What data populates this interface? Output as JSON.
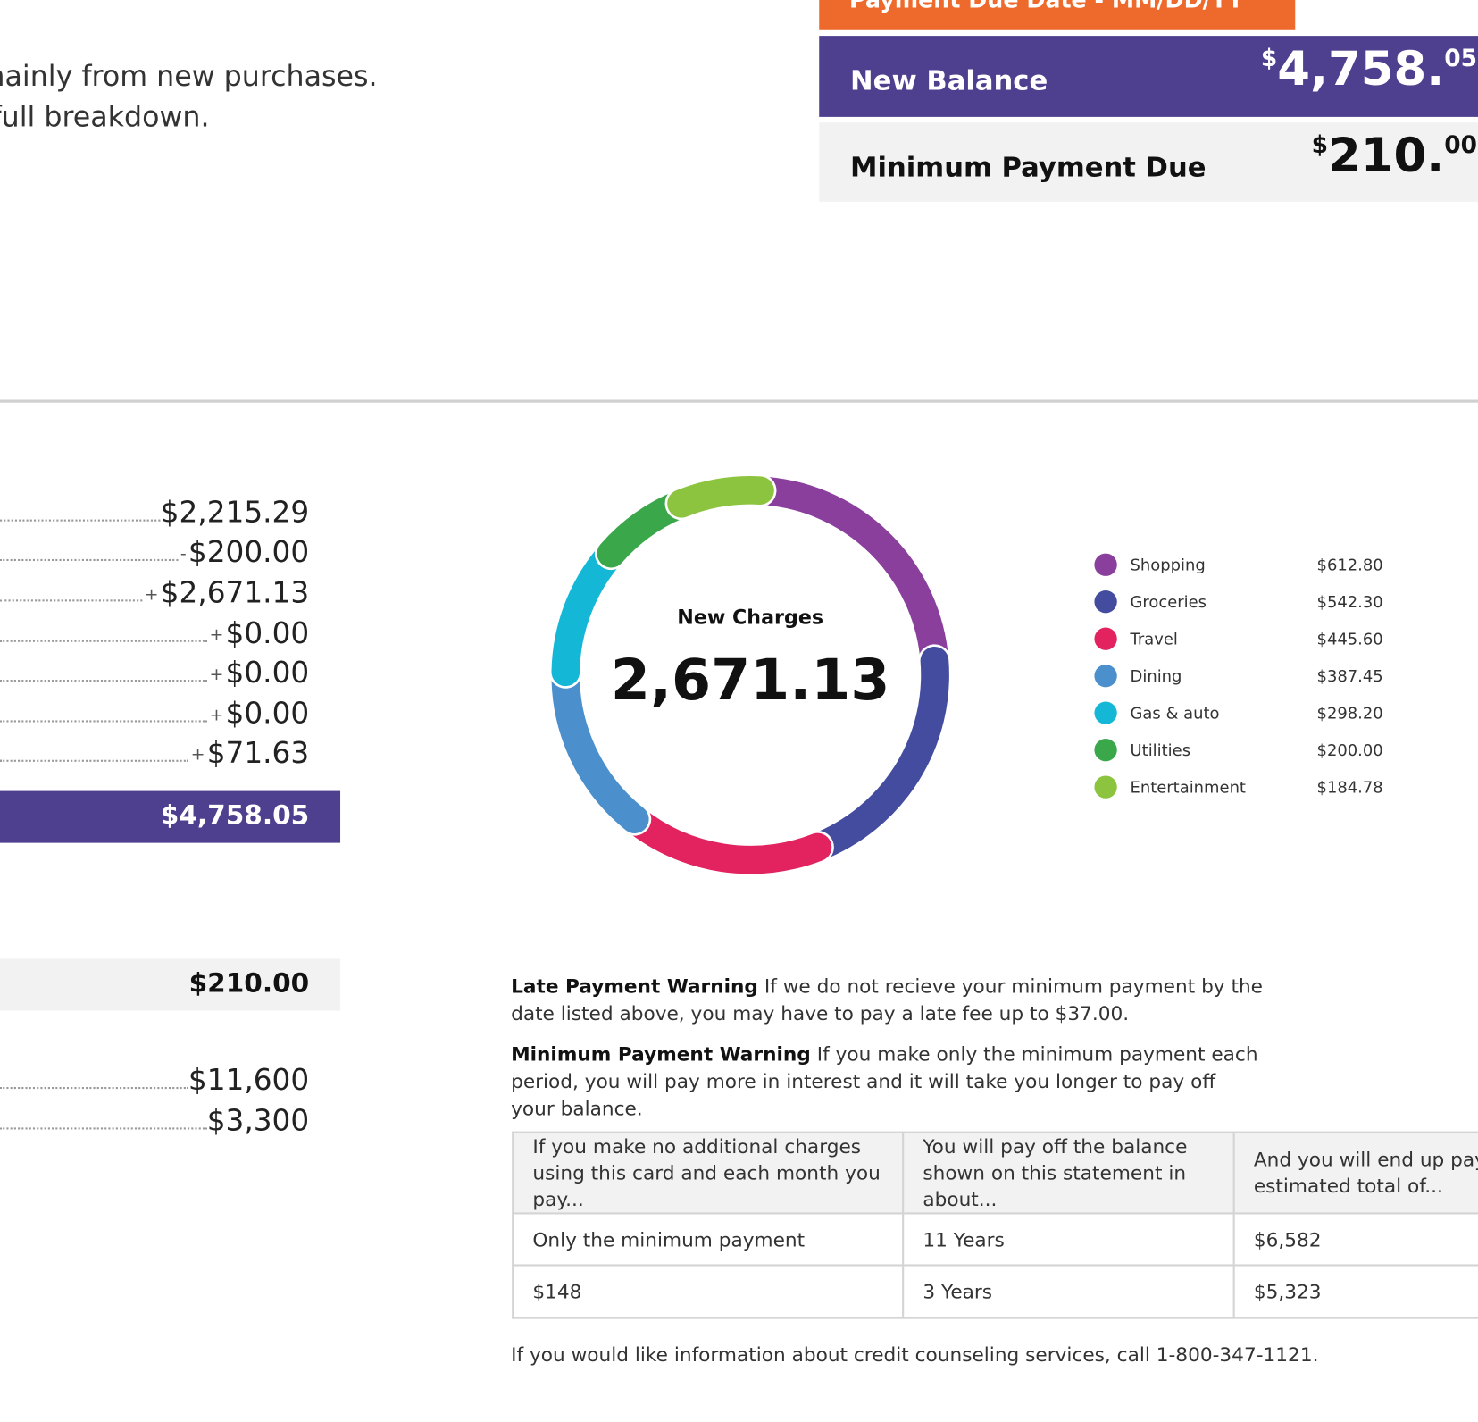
{
  "header": {
    "due_date": "Payment Due Date - MM/DD/YY",
    "new_balance_label": "New Balance",
    "new_balance": "$4,758.05",
    "min_payment_label": "Minimum Payment Due",
    "min_payment": "$210.00"
  },
  "intro": [
    "mainly from new purchases.",
    "full breakdown."
  ],
  "summary": {
    "rows": [
      {
        "amount": "$2,215.29"
      },
      {
        "sign": "-",
        "amount": "$200.00"
      },
      {
        "sign": "+",
        "amount": "$2,671.13"
      },
      {
        "sign": "+",
        "amount": "$0.00"
      },
      {
        "sign": "+",
        "amount": "$0.00"
      },
      {
        "sign": "+",
        "amount": "$0.00"
      },
      {
        "sign": "+",
        "amount": "$71.63"
      }
    ],
    "new_balance": "$4,758.05",
    "min_payment": "$210.00",
    "credit": [
      "$11,600",
      "$3,300"
    ]
  },
  "chart_data": {
    "type": "donut",
    "title": "New Charges",
    "total": "$2,671.13",
    "categories": [
      "Shopping",
      "Groceries",
      "Travel",
      "Dining",
      "Gas & auto",
      "Utilities",
      "Entertainment"
    ],
    "values": [
      612.8,
      542.3,
      445.6,
      387.45,
      298.2,
      200.0,
      184.78
    ],
    "value_labels": [
      "$612.80",
      "$542.30",
      "$445.60",
      "$387.45",
      "$298.20",
      "$200.00",
      "$184.78"
    ],
    "colors": [
      "#8a3f9c",
      "#444c9f",
      "#e2235f",
      "#4b8fcd",
      "#14b8d6",
      "#3aa84a",
      "#8cc43f"
    ]
  },
  "warnings": [
    {
      "title": "Late Payment Warning",
      "text": "If we do not recieve your minimum payment by the date listed above, you may have to pay a late fee up to $37.00."
    },
    {
      "title": "Minimum Payment Warning",
      "text": "If you make only the minimum payment each period, you will pay more in interest and it will take you longer to pay off your balance."
    }
  ],
  "table": {
    "header": [
      "If you make no additional charges using this card and each month you pay...",
      "You will pay off the balance shown on this statement in about...",
      "And you will end up paying an estimated total of..."
    ],
    "rows": [
      [
        "Only the minimum payment",
        "11 Years",
        "$6,582"
      ],
      [
        "$148",
        "3 Years",
        "$5,323"
      ]
    ]
  },
  "footer": "If you would like information about credit counseling services, call 1-800-347-1121."
}
